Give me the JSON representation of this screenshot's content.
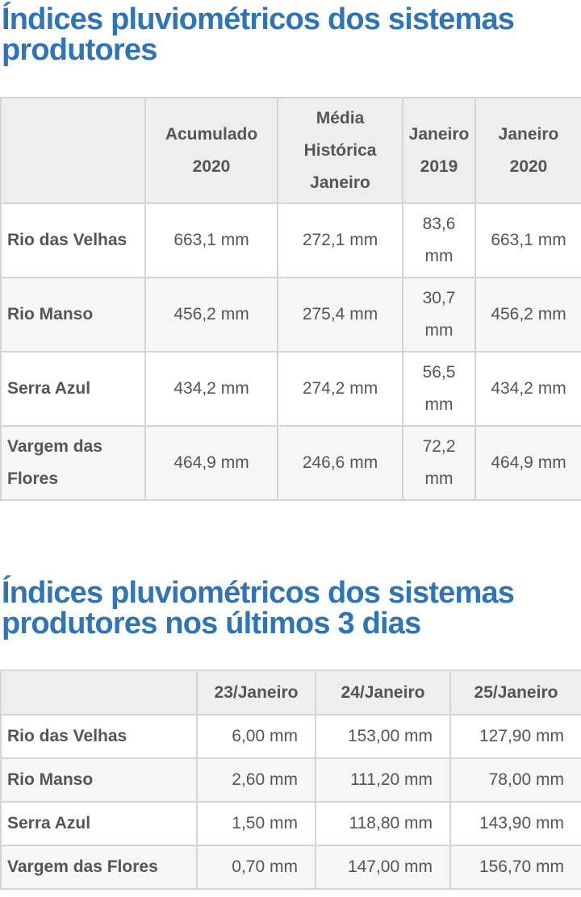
{
  "section1": {
    "title": "Índices pluviométricos dos sistemas produtores",
    "headers": [
      "",
      "Acumulado 2020",
      "Média Histórica Janeiro",
      "Janeiro 2019",
      "Janeiro 2020"
    ],
    "rows": [
      {
        "name": "Rio das Velhas",
        "values": [
          "663,1 mm",
          "272,1 mm",
          "83,6 mm",
          "663,1 mm"
        ]
      },
      {
        "name": "Rio Manso",
        "values": [
          "456,2 mm",
          "275,4 mm",
          "30,7 mm",
          "456,2 mm"
        ]
      },
      {
        "name": "Serra Azul",
        "values": [
          "434,2 mm",
          "274,2 mm",
          "56,5 mm",
          "434,2 mm"
        ]
      },
      {
        "name": "Vargem das Flores",
        "values": [
          "464,9 mm",
          "246,6 mm",
          "72,2 mm",
          "464,9 mm"
        ]
      }
    ]
  },
  "section2": {
    "title": "Índices pluviométricos dos sistemas produtores nos últimos 3 dias",
    "headers": [
      "",
      "23/Janeiro",
      "24/Janeiro",
      "25/Janeiro"
    ],
    "rows": [
      {
        "name": "Rio das Velhas",
        "values": [
          "6,00 mm",
          "153,00 mm",
          "127,90 mm"
        ]
      },
      {
        "name": "Rio Manso",
        "values": [
          "2,60 mm",
          "111,20 mm",
          "78,00 mm"
        ]
      },
      {
        "name": "Serra Azul",
        "values": [
          "1,50 mm",
          "118,80 mm",
          "143,90 mm"
        ]
      },
      {
        "name": "Vargem das Flores",
        "values": [
          "0,70 mm",
          "147,00 mm",
          "156,70 mm"
        ]
      }
    ]
  },
  "colors": {
    "title": "#2f74b5",
    "text": "#555555",
    "border": "#d4d4d4",
    "header_bg": "#eeeeee",
    "alt_row_bg": "#f6f6f6"
  }
}
